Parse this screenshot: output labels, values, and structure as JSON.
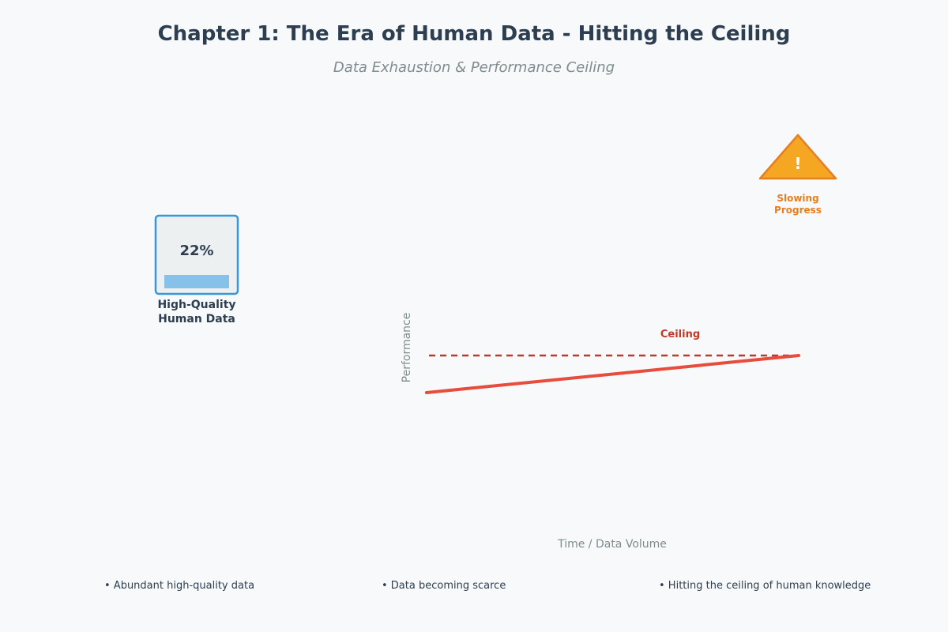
{
  "title": "Chapter 1: The Era of Human Data - Hitting the Ceiling",
  "subtitle": "Data Exhaustion & Performance Ceiling",
  "data_card": {
    "percent_label": "22%",
    "fill_fraction": 0.22,
    "caption_line1": "High-Quality",
    "caption_line2": "Human Data"
  },
  "warning": {
    "symbol": "!",
    "label_line1": "Slowing",
    "label_line2": "Progress"
  },
  "performance_chart": {
    "y_label": "Performance",
    "x_label": "Time / Data Volume",
    "ceiling_label": "Ceiling"
  },
  "bullets": [
    "• Abundant high-quality data",
    "• Data becoming scarce",
    "• Hitting the ceiling of human knowledge"
  ],
  "colors": {
    "title": "#2c3e50",
    "muted": "#7f8c8d",
    "card_border": "#3498db",
    "card_fill_bar": "#85c1e9",
    "line": "#e74c3c",
    "ceiling": "#c0392b",
    "warning_fill": "#f5a623",
    "warning_stroke": "#e67e22"
  }
}
